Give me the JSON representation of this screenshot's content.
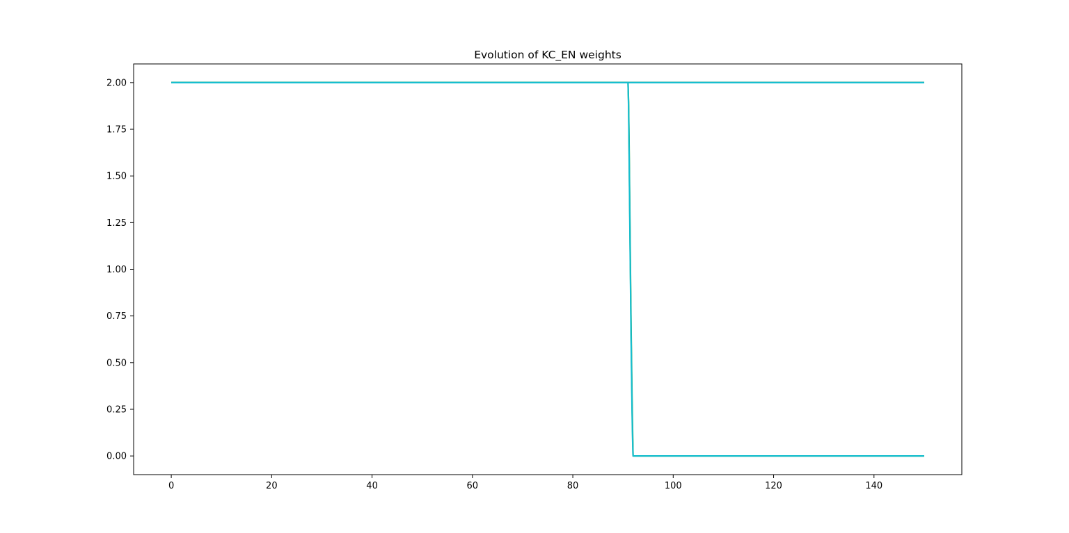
{
  "chart_data": {
    "type": "line",
    "title": "Evolution of KC_EN weights",
    "xlabel": "",
    "ylabel": "",
    "xlim": [
      -7.5,
      157.5
    ],
    "ylim": [
      -0.1,
      2.1
    ],
    "x_ticks": [
      0,
      20,
      40,
      60,
      80,
      100,
      120,
      140
    ],
    "x_tick_labels": [
      "0",
      "20",
      "40",
      "60",
      "80",
      "100",
      "120",
      "140"
    ],
    "y_ticks": [
      0.0,
      0.25,
      0.5,
      0.75,
      1.0,
      1.25,
      1.5,
      1.75,
      2.0
    ],
    "y_tick_labels": [
      "0.00",
      "0.25",
      "0.50",
      "0.75",
      "1.00",
      "1.25",
      "1.50",
      "1.75",
      "2.00"
    ],
    "grid": false,
    "legend": "none",
    "series": [
      {
        "color": "#1f77b4",
        "x": [
          0,
          150
        ],
        "y": [
          2.0,
          2.0
        ]
      },
      {
        "color": "#7f7f7f",
        "x": [
          0,
          150
        ],
        "y": [
          2.0,
          2.0
        ]
      },
      {
        "color": "#2ca02c",
        "x": [
          0,
          150
        ],
        "y": [
          2.0,
          2.0
        ]
      },
      {
        "color": "#17becf",
        "x": [
          0,
          150
        ],
        "y": [
          2.0,
          2.0
        ]
      },
      {
        "color": "#2ca02c",
        "x": [
          0,
          91.0,
          91.1,
          91.2,
          91.3,
          91.4,
          91.5,
          91.6,
          91.7,
          91.8,
          91.9,
          92.0,
          150
        ],
        "y": [
          2.0,
          2.0,
          1.9,
          1.7,
          1.45,
          1.2,
          0.95,
          0.7,
          0.5,
          0.3,
          0.15,
          0.0,
          0.0
        ]
      },
      {
        "color": "#17becf",
        "x": [
          0,
          91.0,
          91.1,
          91.2,
          91.3,
          91.4,
          91.5,
          91.6,
          91.7,
          91.8,
          91.9,
          92.0,
          150
        ],
        "y": [
          2.0,
          2.0,
          1.88,
          1.65,
          1.4,
          1.15,
          0.9,
          0.65,
          0.45,
          0.25,
          0.1,
          0.0,
          0.0
        ]
      }
    ]
  }
}
